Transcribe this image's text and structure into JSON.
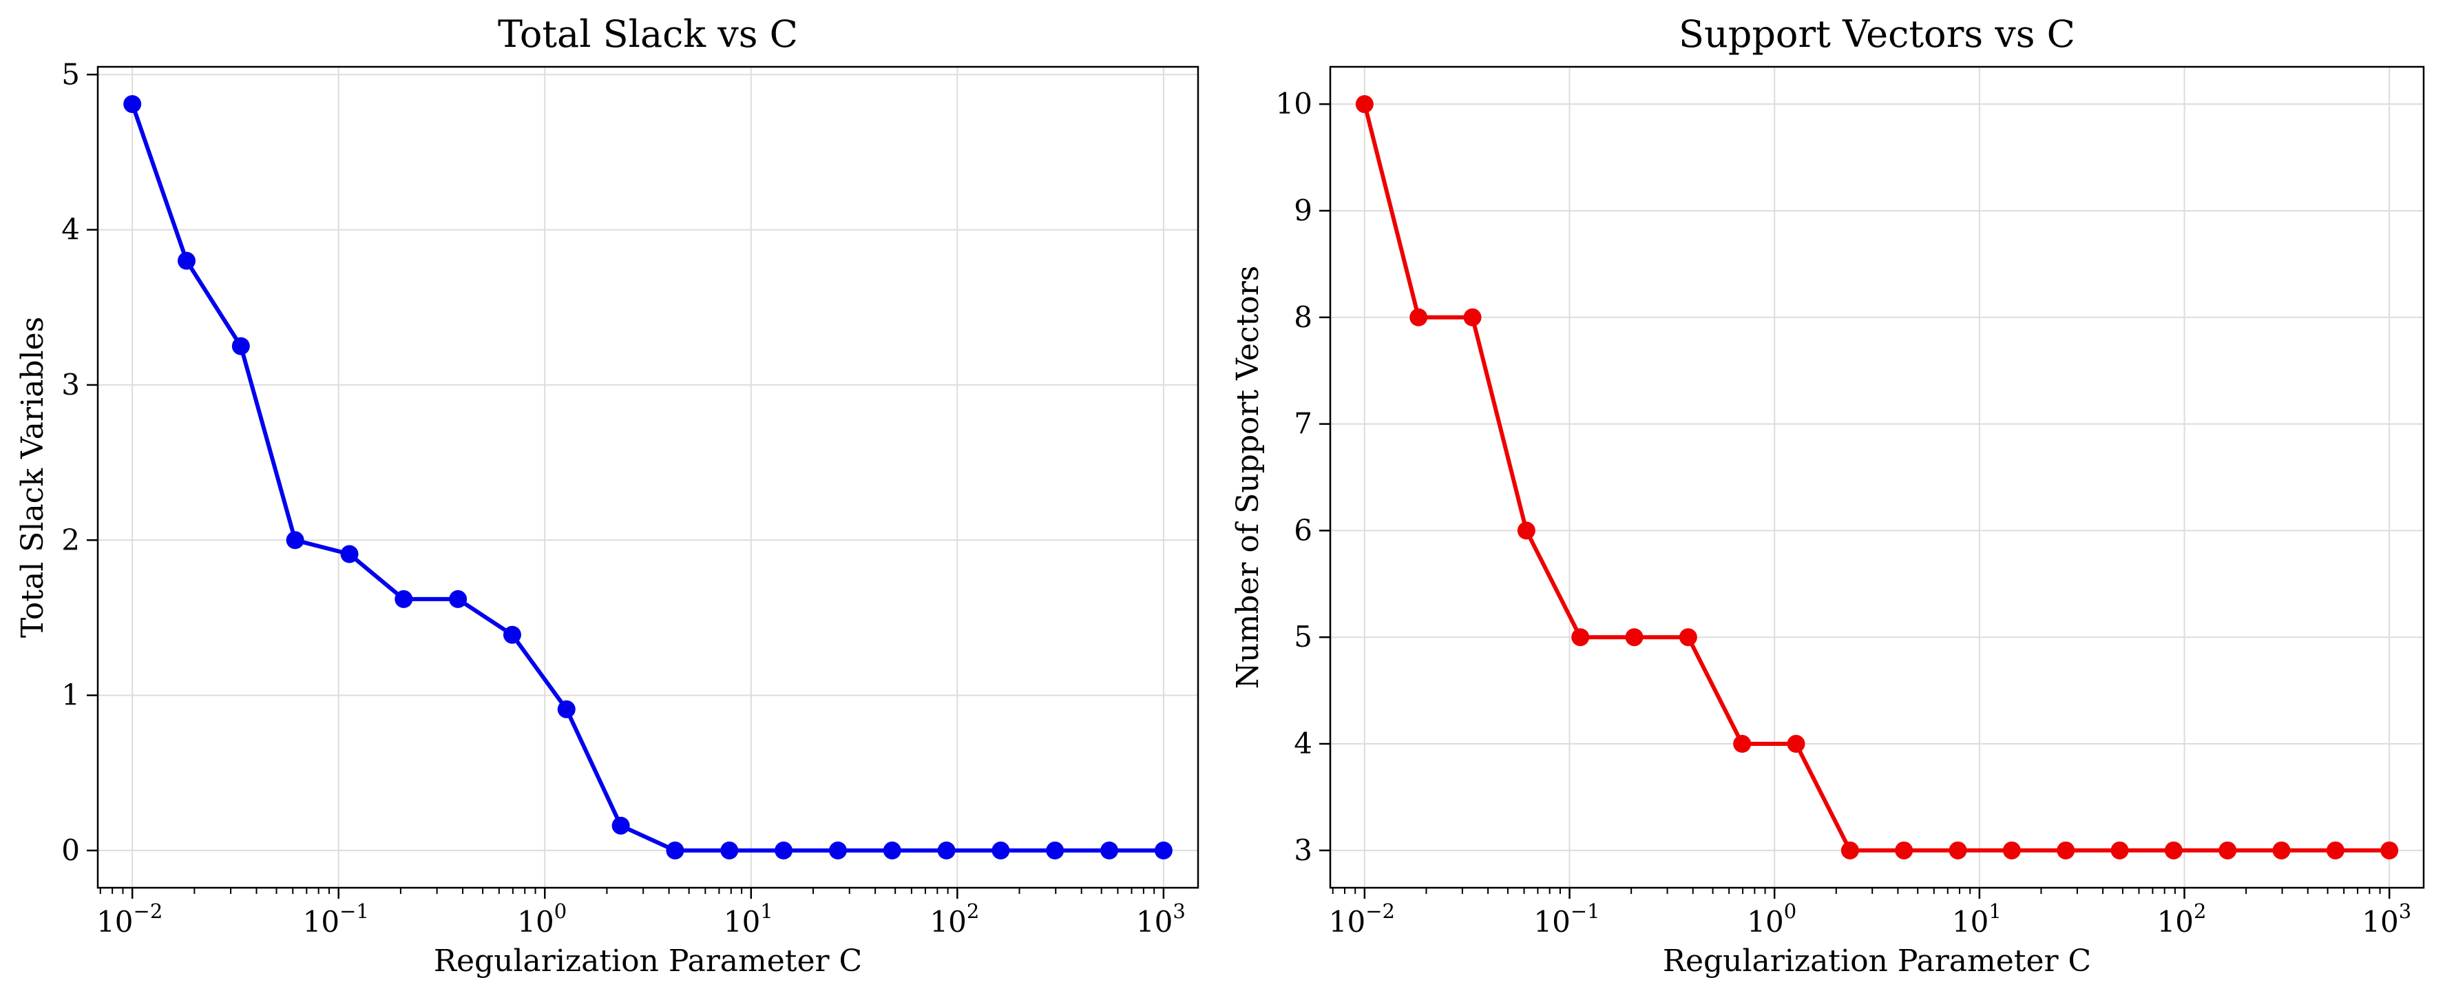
{
  "chart_data": [
    {
      "type": "line",
      "title": "Total Slack vs C",
      "xlabel": "Regularization Parameter C",
      "ylabel": "Total Slack Variables",
      "xscale": "log",
      "xlim": [
        0.0068,
        1470
      ],
      "ylim": [
        -0.24,
        5.05
      ],
      "x_ticks": [
        {
          "base": "10",
          "exp": "−2",
          "value": 0.01
        },
        {
          "base": "10",
          "exp": "−1",
          "value": 0.1
        },
        {
          "base": "10",
          "exp": "0",
          "value": 1
        },
        {
          "base": "10",
          "exp": "1",
          "value": 10
        },
        {
          "base": "10",
          "exp": "2",
          "value": 100
        },
        {
          "base": "10",
          "exp": "3",
          "value": 1000
        }
      ],
      "y_ticks": [
        "0",
        "1",
        "2",
        "3",
        "4",
        "5"
      ],
      "grid": true,
      "color": "#0000ee",
      "series": [
        {
          "x": [
            0.01,
            0.01833,
            0.0336,
            0.06158,
            0.1129,
            0.2069,
            0.3793,
            0.6952,
            1.274,
            2.336,
            4.281,
            7.848,
            14.38,
            26.37,
            48.33,
            88.59,
            162.4,
            297.6,
            545.6,
            1000
          ],
          "values": [
            4.81,
            3.8,
            3.25,
            2.0,
            1.91,
            1.62,
            1.62,
            1.39,
            0.91,
            0.16,
            0.0,
            0.0,
            0.0,
            0.0,
            0.0,
            0.0,
            0.0,
            0.0,
            0.0,
            0.0
          ]
        }
      ]
    },
    {
      "type": "line",
      "title": "Support Vectors vs C",
      "xlabel": "Regularization Parameter C",
      "ylabel": "Number of Support Vectors",
      "xscale": "log",
      "xlim": [
        0.0068,
        1470
      ],
      "ylim": [
        2.65,
        10.35
      ],
      "x_ticks": [
        {
          "base": "10",
          "exp": "−2",
          "value": 0.01
        },
        {
          "base": "10",
          "exp": "−1",
          "value": 0.1
        },
        {
          "base": "10",
          "exp": "0",
          "value": 1
        },
        {
          "base": "10",
          "exp": "1",
          "value": 10
        },
        {
          "base": "10",
          "exp": "2",
          "value": 100
        },
        {
          "base": "10",
          "exp": "3",
          "value": 1000
        }
      ],
      "y_ticks": [
        "3",
        "4",
        "5",
        "6",
        "7",
        "8",
        "9",
        "10"
      ],
      "grid": true,
      "color": "#ee0000",
      "series": [
        {
          "x": [
            0.01,
            0.01833,
            0.0336,
            0.06158,
            0.1129,
            0.2069,
            0.3793,
            0.6952,
            1.274,
            2.336,
            4.281,
            7.848,
            14.38,
            26.37,
            48.33,
            88.59,
            162.4,
            297.6,
            545.6,
            1000
          ],
          "values": [
            10,
            8,
            8,
            6,
            5,
            5,
            5,
            4,
            4,
            3,
            3,
            3,
            3,
            3,
            3,
            3,
            3,
            3,
            3,
            3
          ]
        }
      ]
    }
  ]
}
